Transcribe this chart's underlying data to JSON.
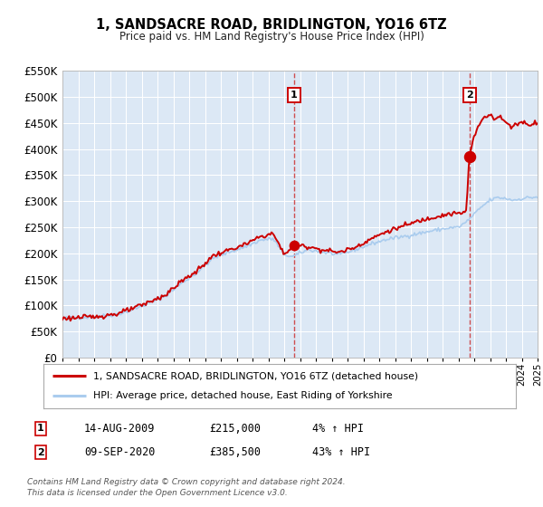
{
  "title": "1, SANDSACRE ROAD, BRIDLINGTON, YO16 6TZ",
  "subtitle": "Price paid vs. HM Land Registry's House Price Index (HPI)",
  "legend_line1": "1, SANDSACRE ROAD, BRIDLINGTON, YO16 6TZ (detached house)",
  "legend_line2": "HPI: Average price, detached house, East Riding of Yorkshire",
  "annotation1_date": "14-AUG-2009",
  "annotation1_price": "£215,000",
  "annotation1_hpi": "4% ↑ HPI",
  "annotation2_date": "09-SEP-2020",
  "annotation2_price": "£385,500",
  "annotation2_hpi": "43% ↑ HPI",
  "footer1": "Contains HM Land Registry data © Crown copyright and database right 2024.",
  "footer2": "This data is licensed under the Open Government Licence v3.0.",
  "sale1_year": 2009.62,
  "sale1_value": 215000,
  "sale2_year": 2020.69,
  "sale2_value": 385500,
  "red_line_color": "#cc0000",
  "blue_line_color": "#aaccee",
  "background_color": "#ffffff",
  "plot_bg_color": "#dce8f5",
  "vline_color": "#cc3333",
  "marker_box_color": "#cc0000",
  "ylim_max": 550000,
  "ylim_min": 0,
  "xlim_min": 1995,
  "xlim_max": 2025,
  "hpi_anchors": [
    [
      1995.0,
      75000
    ],
    [
      1997.0,
      78000
    ],
    [
      1998.5,
      83000
    ],
    [
      2000.0,
      98000
    ],
    [
      2001.5,
      118000
    ],
    [
      2002.5,
      142000
    ],
    [
      2003.5,
      163000
    ],
    [
      2004.5,
      190000
    ],
    [
      2005.5,
      202000
    ],
    [
      2006.5,
      212000
    ],
    [
      2007.5,
      225000
    ],
    [
      2008.3,
      228000
    ],
    [
      2009.0,
      198000
    ],
    [
      2009.5,
      193000
    ],
    [
      2010.5,
      207000
    ],
    [
      2011.5,
      202000
    ],
    [
      2012.5,
      197000
    ],
    [
      2013.5,
      207000
    ],
    [
      2014.5,
      218000
    ],
    [
      2015.5,
      227000
    ],
    [
      2016.5,
      232000
    ],
    [
      2017.5,
      238000
    ],
    [
      2018.5,
      244000
    ],
    [
      2019.5,
      249000
    ],
    [
      2020.0,
      250000
    ],
    [
      2020.5,
      260000
    ],
    [
      2021.0,
      275000
    ],
    [
      2021.5,
      290000
    ],
    [
      2022.0,
      302000
    ],
    [
      2022.5,
      307000
    ],
    [
      2023.0,
      305000
    ],
    [
      2023.5,
      302000
    ],
    [
      2024.0,
      305000
    ],
    [
      2024.5,
      307000
    ],
    [
      2025.0,
      308000
    ]
  ],
  "red_anchors": [
    [
      1995.0,
      75000
    ],
    [
      1997.0,
      78000
    ],
    [
      1998.5,
      84000
    ],
    [
      2000.0,
      100000
    ],
    [
      2001.5,
      120000
    ],
    [
      2002.5,
      146000
    ],
    [
      2003.5,
      166000
    ],
    [
      2004.5,
      195000
    ],
    [
      2005.5,
      206000
    ],
    [
      2006.5,
      216000
    ],
    [
      2007.5,
      232000
    ],
    [
      2008.3,
      238000
    ],
    [
      2009.0,
      198000
    ],
    [
      2009.62,
      215000
    ],
    [
      2010.5,
      213000
    ],
    [
      2011.5,
      206000
    ],
    [
      2012.5,
      202000
    ],
    [
      2013.5,
      212000
    ],
    [
      2014.5,
      228000
    ],
    [
      2015.5,
      242000
    ],
    [
      2016.5,
      252000
    ],
    [
      2017.5,
      262000
    ],
    [
      2018.5,
      270000
    ],
    [
      2019.5,
      276000
    ],
    [
      2020.0,
      276000
    ],
    [
      2020.5,
      280000
    ],
    [
      2020.69,
      385500
    ],
    [
      2021.0,
      425000
    ],
    [
      2021.5,
      458000
    ],
    [
      2022.0,
      468000
    ],
    [
      2022.3,
      458000
    ],
    [
      2022.6,
      462000
    ],
    [
      2023.0,
      452000
    ],
    [
      2023.3,
      442000
    ],
    [
      2023.6,
      448000
    ],
    [
      2024.0,
      452000
    ],
    [
      2024.5,
      447000
    ],
    [
      2025.0,
      452000
    ]
  ]
}
